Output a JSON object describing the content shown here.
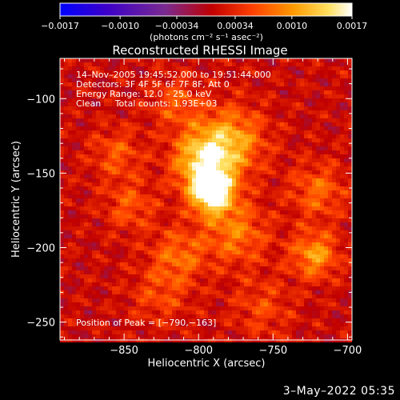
{
  "chart_data": {
    "type": "heatmap",
    "title": "Reconstructed RHESSI Image",
    "xlabel": "Heliocentric X (arcsec)",
    "ylabel": "Heliocentric Y (arcsec)",
    "xlim": [
      -893,
      -697
    ],
    "ylim": [
      -262,
      -73
    ],
    "x_ticks": [
      -850,
      -800,
      -750,
      -700
    ],
    "x_tick_labels": [
      "−850",
      "−800",
      "−750",
      "−700"
    ],
    "y_ticks": [
      -100,
      -150,
      -200,
      -250
    ],
    "y_tick_labels": [
      "−100",
      "−150",
      "−200",
      "−250"
    ],
    "colorbar": {
      "vmin": -0.0017,
      "vmax": 0.0017,
      "tick_values": [
        -0.0017,
        -0.001,
        -0.00034,
        0.00034,
        0.001,
        0.0017
      ],
      "tick_labels": [
        "−0.0017",
        "−0.0010",
        "−0.00034",
        "0.00034",
        "0.0010",
        "0.0017"
      ],
      "unit_label": "(photons cm⁻² s⁻¹ asec⁻²)",
      "colors": [
        "#0000ff",
        "#3c00c8",
        "#7a2a90",
        "#c00000",
        "#ff4000",
        "#ff9a00",
        "#ffe060",
        "#ffffff"
      ]
    },
    "annotations": [
      "14–Nov–2005 19:45:52.000 to 19:51:44.000",
      "Detectors: 3F 4F 5F 6F 7F 8F, Att 0",
      "Energy Range: 12.0 – 25.0 keV",
      "Clean     Total counts: 1.93E+03"
    ],
    "peak_label": "Position of Peak = [−790,−163]",
    "peak": {
      "x": -790,
      "y": -163
    },
    "grid": false,
    "description_sources": [
      {
        "x": -791,
        "y": -163,
        "amplitude": 0.0017,
        "sigma": 10
      },
      {
        "x": -797,
        "y": -142,
        "amplitude": 0.0012,
        "sigma": 14
      },
      {
        "x": -778,
        "y": -128,
        "amplitude": 0.0009,
        "sigma": 16
      },
      {
        "x": -775,
        "y": -190,
        "amplitude": 0.0007,
        "sigma": 15
      },
      {
        "x": -813,
        "y": -205,
        "amplitude": 0.0006,
        "sigma": 13
      },
      {
        "x": -722,
        "y": -205,
        "amplitude": 0.0009,
        "sigma": 11
      },
      {
        "x": -720,
        "y": -162,
        "amplitude": 0.0006,
        "sigma": 13
      },
      {
        "x": -855,
        "y": -137,
        "amplitude": 0.0005,
        "sigma": 12
      },
      {
        "x": -846,
        "y": -172,
        "amplitude": 0.0005,
        "sigma": 12
      },
      {
        "x": -815,
        "y": -103,
        "amplitude": 0.0005,
        "sigma": 12
      },
      {
        "x": -757,
        "y": -240,
        "amplitude": 0.0004,
        "sigma": 14
      },
      {
        "x": -826,
        "y": -232,
        "amplitude": 0.0004,
        "sigma": 14
      }
    ]
  },
  "footer": {
    "date": "3–May–2022 05:35"
  }
}
